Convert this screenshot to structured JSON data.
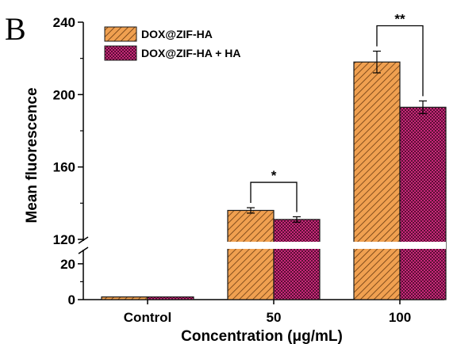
{
  "panel_label": "B",
  "chart_data": {
    "type": "bar",
    "xlabel": "Concentration (μg/mL)",
    "ylabel": "Mean fluorescence",
    "categories": [
      "Control",
      "50",
      "100"
    ],
    "series": [
      {
        "name": "DOX@ZIF-HA",
        "values": [
          1.5,
          136,
          218
        ],
        "errors": [
          0.5,
          1.5,
          6
        ],
        "color": "#f0a050",
        "pattern": "diagonal-hatch"
      },
      {
        "name": "DOX@ZIF-HA + HA",
        "values": [
          1.5,
          131,
          193
        ],
        "errors": [
          0.5,
          1.5,
          3.5
        ],
        "color": "#c8287a",
        "pattern": "crosshatch"
      }
    ],
    "y_axis_break": {
      "lower_segment": {
        "ylim": [
          0,
          27
        ],
        "ticks": [
          0,
          20
        ],
        "tick_labels": [
          "0",
          "20"
        ]
      },
      "upper_segment": {
        "ylim": [
          120,
          240
        ],
        "ticks": [
          120,
          160,
          200,
          240
        ],
        "tick_labels": [
          "120",
          "160",
          "200",
          "240"
        ]
      }
    },
    "legend": {
      "position": "top-left",
      "entries": [
        "DOX@ZIF-HA",
        "DOX@ZIF-HA + HA"
      ]
    },
    "significance": [
      {
        "category": "50",
        "label": "*"
      },
      {
        "category": "100",
        "label": "**"
      }
    ],
    "grid": false
  }
}
